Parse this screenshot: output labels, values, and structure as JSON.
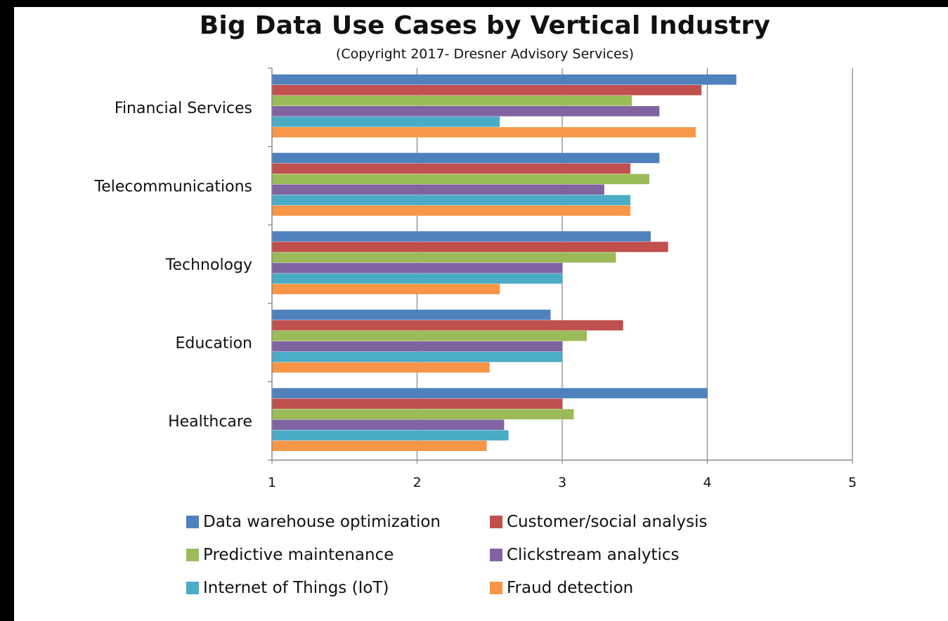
{
  "chart_data": {
    "type": "bar",
    "orientation": "horizontal",
    "title": "Big Data Use Cases by Vertical Industry",
    "subtitle": "(Copyright 2017- Dresner Advisory Services)",
    "categories": [
      "Financial Services",
      "Telecommunications",
      "Technology",
      "Education",
      "Healthcare"
    ],
    "xlim": [
      1,
      5
    ],
    "xticks": [
      "1",
      "2",
      "3",
      "4",
      "5"
    ],
    "grid": true,
    "legend_position": "bottom",
    "series": [
      {
        "name": "Data warehouse optimization",
        "color": "#4f81bd",
        "values": [
          4.2,
          3.67,
          3.61,
          2.92,
          4.0
        ]
      },
      {
        "name": "Customer/social analysis",
        "color": "#c0504d",
        "values": [
          3.96,
          3.47,
          3.73,
          3.42,
          3.0
        ]
      },
      {
        "name": "Predictive maintenance",
        "color": "#9bbb59",
        "values": [
          3.48,
          3.6,
          3.37,
          3.17,
          3.08
        ]
      },
      {
        "name": "Clickstream analytics",
        "color": "#8064a2",
        "values": [
          3.67,
          3.29,
          3.0,
          3.0,
          2.6
        ]
      },
      {
        "name": "Internet of Things (IoT)",
        "color": "#4bacc6",
        "values": [
          2.57,
          3.47,
          3.0,
          3.0,
          2.63
        ]
      },
      {
        "name": "Fraud detection",
        "color": "#f79646",
        "values": [
          3.92,
          3.47,
          2.57,
          2.5,
          2.48
        ]
      }
    ]
  }
}
